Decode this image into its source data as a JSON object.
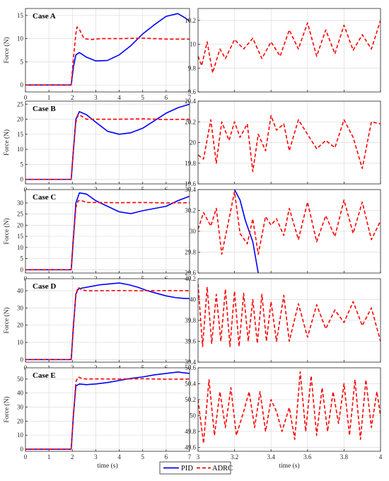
{
  "legend": {
    "pid_label": "PID",
    "adrc_label": "ADRC",
    "pid_color": "#0000ff",
    "adrc_color": "#ff0000"
  },
  "chart_data": [
    {
      "type": "line",
      "case_label": "Case A",
      "ylabel": "Force (N)",
      "xlabel": "",
      "xlim": [
        0,
        7
      ],
      "ylim": [
        -1.5,
        16.5
      ],
      "xticks": [
        "0",
        "1",
        "2",
        "3",
        "4",
        "5",
        "6",
        "7"
      ],
      "yticks": [
        "0",
        "5",
        "10",
        "15"
      ],
      "ytick_values": [
        0,
        5,
        10,
        15
      ],
      "series": [
        {
          "name": "PID",
          "x": [
            0,
            1.95,
            2.05,
            2.15,
            2.3,
            2.6,
            3.0,
            3.5,
            4.0,
            4.5,
            5.0,
            5.5,
            6.0,
            6.5,
            6.8,
            7.0
          ],
          "y": [
            0,
            0,
            4,
            6.5,
            7,
            6,
            5.2,
            5.3,
            6.5,
            8.5,
            11,
            13,
            14.8,
            15.4,
            14.5,
            13.8
          ]
        },
        {
          "name": "ADRC",
          "x": [
            0,
            1.95,
            2.05,
            2.15,
            2.2,
            2.3,
            2.5,
            2.8,
            3.2,
            4,
            5,
            6,
            7
          ],
          "y": [
            0,
            0,
            6,
            11,
            12.5,
            12,
            10,
            9.8,
            10,
            10,
            10.1,
            9.9,
            9.9
          ]
        }
      ]
    },
    {
      "type": "line",
      "case_label": "",
      "ylabel": "",
      "xlabel": "",
      "xlim": [
        3,
        4
      ],
      "ylim": [
        9.6,
        10.3
      ],
      "xticks": [],
      "yticks": [
        "9.6",
        "9.8",
        "10",
        "10.2"
      ],
      "ytick_values": [
        9.6,
        9.8,
        10,
        10.2
      ],
      "series": [
        {
          "name": "ADRC",
          "x": [
            3.0,
            3.02,
            3.05,
            3.08,
            3.12,
            3.15,
            3.2,
            3.25,
            3.3,
            3.35,
            3.4,
            3.45,
            3.5,
            3.55,
            3.6,
            3.65,
            3.7,
            3.75,
            3.8,
            3.85,
            3.9,
            3.95,
            4.0
          ],
          "y": [
            9.9,
            9.82,
            10.02,
            9.76,
            9.96,
            9.88,
            10.04,
            9.96,
            10.05,
            9.88,
            10.02,
            9.9,
            10.12,
            9.96,
            10.18,
            9.9,
            10.12,
            9.92,
            10.16,
            9.95,
            10.08,
            9.96,
            10.2
          ]
        }
      ]
    },
    {
      "type": "line",
      "case_label": "Case B",
      "ylabel": "Force (N)",
      "xlabel": "",
      "xlim": [
        0,
        7
      ],
      "ylim": [
        -1.5,
        26
      ],
      "xticks": [
        "0",
        "1",
        "2",
        "3",
        "4",
        "5",
        "6",
        "7"
      ],
      "yticks": [
        "0",
        "5",
        "10",
        "15",
        "20",
        "25"
      ],
      "ytick_values": [
        0,
        5,
        10,
        15,
        20,
        25
      ],
      "series": [
        {
          "name": "PID",
          "x": [
            0,
            1.95,
            2.05,
            2.15,
            2.3,
            2.6,
            3.0,
            3.5,
            4.0,
            4.5,
            5.0,
            5.5,
            6.0,
            6.5,
            7.0
          ],
          "y": [
            0,
            0,
            10,
            20,
            22.5,
            21.5,
            19,
            16,
            15,
            15.5,
            17,
            19.5,
            22,
            23.8,
            25
          ]
        },
        {
          "name": "ADRC",
          "x": [
            0,
            1.95,
            2.05,
            2.15,
            2.25,
            2.4,
            2.6,
            3,
            4,
            5,
            6,
            7
          ],
          "y": [
            0,
            0,
            10,
            19,
            21.5,
            21,
            20,
            20,
            20,
            20.1,
            19.9,
            20
          ]
        }
      ]
    },
    {
      "type": "line",
      "case_label": "",
      "ylabel": "",
      "xlabel": "",
      "xlim": [
        3,
        4
      ],
      "ylim": [
        19.6,
        20.4
      ],
      "xticks": [],
      "yticks": [
        "19.6",
        "19.8",
        "20",
        "20.2",
        "20.4"
      ],
      "ytick_values": [
        19.6,
        19.8,
        20,
        20.2,
        20.4
      ],
      "series": [
        {
          "name": "ADRC",
          "x": [
            3.0,
            3.03,
            3.07,
            3.1,
            3.13,
            3.17,
            3.2,
            3.23,
            3.27,
            3.3,
            3.33,
            3.37,
            3.4,
            3.43,
            3.47,
            3.5,
            3.55,
            3.6,
            3.65,
            3.7,
            3.75,
            3.8,
            3.85,
            3.9,
            3.95,
            4.0
          ],
          "y": [
            19.88,
            19.84,
            20.22,
            19.8,
            20.2,
            20.02,
            20.2,
            20.05,
            20.18,
            19.72,
            20.08,
            19.92,
            20.26,
            20.12,
            20.18,
            19.92,
            20.22,
            20.08,
            19.94,
            20.02,
            19.95,
            20.22,
            20.05,
            19.75,
            20.2,
            20.18
          ]
        }
      ]
    },
    {
      "type": "line",
      "case_label": "Case C",
      "ylabel": "Force (N)",
      "xlabel": "",
      "xlim": [
        0,
        7
      ],
      "ylim": [
        -1.5,
        36
      ],
      "xticks": [
        "0",
        "1",
        "2",
        "3",
        "4",
        "5",
        "6",
        "7"
      ],
      "yticks": [
        "0",
        "5",
        "10",
        "15",
        "20",
        "25",
        "30"
      ],
      "ytick_values": [
        0,
        5,
        10,
        15,
        20,
        25,
        30
      ],
      "series": [
        {
          "name": "PID",
          "x": [
            0,
            1.95,
            2.05,
            2.15,
            2.3,
            2.6,
            3.0,
            3.5,
            4.0,
            4.5,
            5.0,
            5.5,
            6.0,
            6.5,
            7.0
          ],
          "y": [
            0,
            0,
            15,
            30,
            34.5,
            34,
            31,
            28.5,
            26,
            25.2,
            26.5,
            27.5,
            28.5,
            31,
            33
          ]
        },
        {
          "name": "ADRC",
          "x": [
            0,
            1.95,
            2.05,
            2.15,
            2.25,
            2.4,
            2.6,
            3,
            4,
            5,
            6,
            7
          ],
          "y": [
            0,
            0,
            14,
            28,
            31,
            31,
            30.2,
            30.2,
            30.1,
            30.2,
            30,
            30.1
          ]
        }
      ]
    },
    {
      "type": "line",
      "case_label": "",
      "ylabel": "",
      "xlabel": "",
      "xlim": [
        3,
        4
      ],
      "ylim": [
        29.6,
        30.4
      ],
      "xticks": [],
      "yticks": [
        "29.6",
        "29.8",
        "30",
        "30.2",
        "30.4"
      ],
      "ytick_values": [
        29.6,
        29.8,
        30,
        30.2,
        30.4
      ],
      "series": [
        {
          "name": "PID",
          "x": [
            3.2,
            3.23,
            3.26,
            3.28,
            3.3,
            3.33
          ],
          "y": [
            30.4,
            30.3,
            30.1,
            30.0,
            29.9,
            29.6
          ]
        },
        {
          "name": "ADRC",
          "x": [
            3.0,
            3.03,
            3.07,
            3.1,
            3.13,
            3.17,
            3.2,
            3.23,
            3.27,
            3.3,
            3.33,
            3.37,
            3.4,
            3.43,
            3.47,
            3.5,
            3.55,
            3.6,
            3.65,
            3.7,
            3.75,
            3.8,
            3.85,
            3.9,
            3.95,
            4.0
          ],
          "y": [
            30.02,
            30.18,
            30.05,
            30.22,
            29.78,
            30.12,
            30.38,
            29.98,
            29.88,
            30.12,
            29.78,
            30.14,
            30.06,
            30.12,
            29.96,
            30.22,
            29.92,
            30.28,
            29.9,
            30.15,
            29.95,
            30.3,
            29.98,
            30.28,
            29.92,
            30.1
          ]
        }
      ]
    },
    {
      "type": "line",
      "case_label": "Case D",
      "ylabel": "Force (N)",
      "xlabel": "",
      "xlim": [
        0,
        7
      ],
      "ylim": [
        -1.5,
        47
      ],
      "xticks": [
        "0",
        "1",
        "2",
        "3",
        "4",
        "5",
        "6",
        "7"
      ],
      "yticks": [
        "0",
        "10",
        "20",
        "30",
        "40"
      ],
      "ytick_values": [
        0,
        10,
        20,
        30,
        40
      ],
      "series": [
        {
          "name": "PID",
          "x": [
            0,
            1.95,
            2.05,
            2.15,
            2.25,
            2.4,
            2.8,
            3.2,
            3.6,
            4.0,
            4.4,
            4.8,
            5.2,
            5.6,
            6.0,
            6.4,
            6.8,
            7.0
          ],
          "y": [
            0,
            0,
            20,
            38,
            41,
            41.5,
            42.5,
            43.5,
            44,
            44.5,
            43.5,
            42,
            40,
            38.5,
            37,
            36,
            35.5,
            35.5
          ]
        },
        {
          "name": "ADRC",
          "x": [
            0,
            1.95,
            2.05,
            2.15,
            2.25,
            2.4,
            2.6,
            3,
            4,
            5,
            6,
            7
          ],
          "y": [
            0,
            0,
            20,
            38,
            42,
            40.5,
            40,
            40,
            40.1,
            40,
            40.1,
            40
          ]
        }
      ]
    },
    {
      "type": "line",
      "case_label": "",
      "ylabel": "",
      "xlabel": "",
      "xlim": [
        3,
        4
      ],
      "ylim": [
        39.4,
        40.2
      ],
      "xticks": [],
      "yticks": [
        "39.4",
        "39.6",
        "39.8",
        "40",
        "40.2"
      ],
      "ytick_values": [
        39.4,
        39.6,
        39.8,
        40,
        40.2
      ],
      "series": [
        {
          "name": "ADRC",
          "x": [
            3.0,
            3.025,
            3.05,
            3.075,
            3.1,
            3.125,
            3.15,
            3.175,
            3.2,
            3.225,
            3.25,
            3.275,
            3.3,
            3.325,
            3.35,
            3.375,
            3.4,
            3.43,
            3.47,
            3.5,
            3.55,
            3.6,
            3.65,
            3.7,
            3.75,
            3.8,
            3.85,
            3.9,
            3.95,
            4.0
          ],
          "y": [
            40.15,
            39.55,
            40.12,
            39.58,
            40.05,
            39.6,
            40.1,
            39.55,
            40.08,
            39.55,
            40.06,
            39.6,
            40.0,
            39.58,
            40.05,
            39.6,
            39.98,
            39.6,
            40.04,
            39.6,
            39.96,
            39.64,
            39.95,
            39.72,
            39.9,
            39.78,
            39.98,
            39.75,
            39.92,
            39.6
          ]
        }
      ]
    },
    {
      "type": "line",
      "case_label": "Case E",
      "ylabel": "Force (N)",
      "xlabel": "time (s)",
      "xlim": [
        0,
        7
      ],
      "ylim": [
        -1.5,
        58
      ],
      "xticks": [
        "0",
        "1",
        "2",
        "3",
        "4",
        "5",
        "6",
        "7"
      ],
      "yticks": [
        "0",
        "10",
        "20",
        "30",
        "40",
        "50"
      ],
      "ytick_values": [
        0,
        10,
        20,
        30,
        40,
        50
      ],
      "series": [
        {
          "name": "PID",
          "x": [
            0,
            1.95,
            2.05,
            2.15,
            2.3,
            2.6,
            3.0,
            3.5,
            4.0,
            4.5,
            5.0,
            5.5,
            6.0,
            6.5,
            7.0
          ],
          "y": [
            0,
            0,
            25,
            45,
            46.5,
            46,
            46.5,
            47.5,
            49,
            50.5,
            51.5,
            53,
            54,
            55,
            54
          ]
        },
        {
          "name": "ADRC",
          "x": [
            0,
            1.95,
            2.05,
            2.15,
            2.25,
            2.4,
            2.6,
            3,
            4,
            5,
            6,
            7
          ],
          "y": [
            0,
            0,
            25,
            48,
            51.5,
            50.5,
            50,
            50.1,
            50,
            50.2,
            49.9,
            50
          ]
        }
      ]
    },
    {
      "type": "line",
      "case_label": "",
      "ylabel": "",
      "xlabel": "time (s)",
      "xlim": [
        3,
        4
      ],
      "ylim": [
        49.55,
        50.6
      ],
      "xticks": [
        "3",
        "3.2",
        "3.4",
        "3.6",
        "3.8",
        "4"
      ],
      "yticks": [
        "49.6",
        "49.8",
        "50",
        "50.2",
        "50.4",
        "50.6"
      ],
      "ytick_values": [
        49.6,
        49.8,
        50,
        50.2,
        50.4,
        50.6
      ],
      "series": [
        {
          "name": "ADRC",
          "x": [
            3.0,
            3.03,
            3.06,
            3.09,
            3.12,
            3.15,
            3.18,
            3.21,
            3.25,
            3.28,
            3.31,
            3.34,
            3.37,
            3.4,
            3.43,
            3.46,
            3.5,
            3.53,
            3.56,
            3.59,
            3.62,
            3.65,
            3.68,
            3.71,
            3.74,
            3.77,
            3.8,
            3.83,
            3.86,
            3.89,
            3.92,
            3.95,
            3.98,
            4.0
          ],
          "y": [
            50.2,
            49.65,
            50.45,
            49.75,
            50.3,
            49.85,
            50.35,
            49.75,
            50.05,
            50.3,
            49.85,
            50.3,
            49.8,
            50.2,
            50.05,
            49.8,
            50.1,
            49.7,
            50.55,
            49.8,
            50.5,
            49.75,
            50.35,
            49.8,
            50.3,
            49.9,
            50.4,
            49.75,
            50.45,
            49.7,
            50.45,
            49.85,
            50.3,
            50.0
          ]
        }
      ]
    }
  ]
}
